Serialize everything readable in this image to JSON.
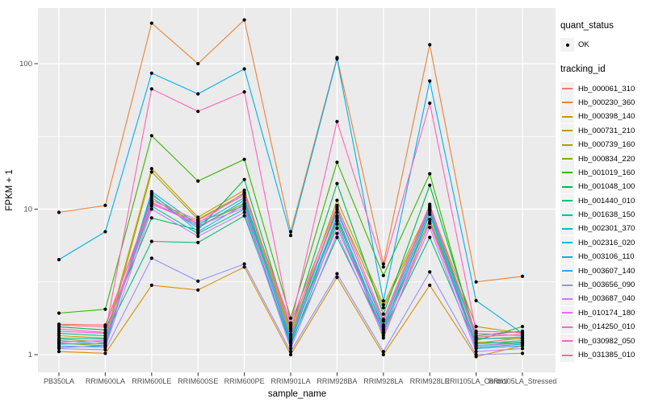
{
  "figure": {
    "background": "#FFFFFF",
    "panel_bg": "#EBEBEB",
    "grid_color": "#FFFFFF",
    "tick_color": "#333333",
    "tick_label_color": "#4D4D4D",
    "axis_title_color": "#000000",
    "point_color": "#000000",
    "legend_key_bg": "#F2F2F2"
  },
  "chart_data": {
    "type": "line",
    "title": "",
    "xlabel": "sample_name",
    "ylabel": "FPKM + 1",
    "y_scale": "log10",
    "y_ticks": [
      "1",
      "10",
      "100"
    ],
    "y_minor_values": [
      3.1623,
      31.623
    ],
    "ylim_approx": [
      0.78,
      230
    ],
    "grid": "on",
    "legend_position": "right",
    "categories": [
      "PB350LA",
      "RRIM600LA",
      "RRIM600LE",
      "RRIM600SE",
      "RRIM600PE",
      "RRIM901LA",
      "RRIM928BA",
      "RRIM928LA",
      "RRIM928LE",
      "RRII105LA_Control",
      "RRII105LA_Stressed"
    ],
    "legend": {
      "quant_title": "quant_status",
      "quant_items": [
        {
          "label": "OK",
          "shape": "point"
        }
      ],
      "series_title": "tracking_id"
    },
    "series": [
      {
        "name": "Hb_000061_310",
        "color": "#F8766D",
        "values": [
          1.62,
          1.6,
          11.0,
          8.2,
          10.5,
          1.25,
          8.8,
          1.3,
          8.2,
          1.2,
          1.3
        ]
      },
      {
        "name": "Hb_000230_360",
        "color": "#EB8335",
        "values": [
          9.5,
          10.6,
          190,
          100,
          200,
          7.0,
          110,
          4.2,
          135,
          3.16,
          3.45
        ]
      },
      {
        "name": "Hb_000398_140",
        "color": "#D89000",
        "values": [
          1.05,
          1.02,
          3.0,
          2.78,
          4.0,
          1.0,
          3.4,
          1.0,
          3.0,
          0.97,
          1.15
        ]
      },
      {
        "name": "Hb_000731_210",
        "color": "#C09B06",
        "values": [
          1.35,
          1.3,
          19.0,
          8.8,
          13.5,
          1.45,
          11.5,
          2.2,
          10.4,
          1.56,
          1.4
        ]
      },
      {
        "name": "Hb_000739_160",
        "color": "#A3A500",
        "values": [
          1.28,
          1.22,
          18.0,
          8.5,
          12.8,
          1.38,
          10.3,
          2.1,
          9.8,
          1.3,
          1.28
        ]
      },
      {
        "name": "Hb_000834_220",
        "color": "#7CAE00",
        "values": [
          1.2,
          1.15,
          12.5,
          7.6,
          11.0,
          1.3,
          8.3,
          1.55,
          8.5,
          1.22,
          1.2
        ]
      },
      {
        "name": "Hb_001019_160",
        "color": "#39B600",
        "values": [
          1.93,
          2.05,
          32,
          15.6,
          22,
          1.78,
          21,
          3.5,
          17.5,
          1.25,
          1.56
        ]
      },
      {
        "name": "Hb_001048_100",
        "color": "#00BB4E",
        "values": [
          1.55,
          1.48,
          8.7,
          7.2,
          16,
          1.5,
          15,
          1.9,
          14.6,
          1.35,
          1.45
        ]
      },
      {
        "name": "Hb_001440_010",
        "color": "#00BF7D",
        "values": [
          1.4,
          1.35,
          6.0,
          5.9,
          9.0,
          1.2,
          6.4,
          1.45,
          6.4,
          1.15,
          1.22
        ]
      },
      {
        "name": "Hb_001638_150",
        "color": "#00C1A7",
        "values": [
          1.3,
          1.28,
          10.5,
          6.8,
          10.0,
          1.15,
          7.9,
          1.4,
          9.5,
          1.12,
          1.18
        ]
      },
      {
        "name": "Hb_002301_370",
        "color": "#00BFC4",
        "values": [
          1.18,
          1.2,
          12.0,
          7.4,
          11.5,
          1.28,
          9.0,
          1.5,
          10.0,
          1.18,
          1.25
        ]
      },
      {
        "name": "Hb_002316_020",
        "color": "#00BADE",
        "values": [
          1.12,
          1.15,
          13.2,
          7.8,
          12.0,
          1.32,
          10.0,
          1.6,
          10.5,
          1.28,
          1.32
        ]
      },
      {
        "name": "Hb_003106_110",
        "color": "#00B0F6",
        "values": [
          4.5,
          7.0,
          86,
          62,
          92,
          6.6,
          108,
          2.34,
          76,
          2.35,
          1.4
        ]
      },
      {
        "name": "Hb_003607_140",
        "color": "#35A2FF",
        "values": [
          1.25,
          1.18,
          12.8,
          7.0,
          10.8,
          1.22,
          8.6,
          1.42,
          9.2,
          1.1,
          1.15
        ]
      },
      {
        "name": "Hb_003656_090",
        "color": "#9590FF",
        "values": [
          1.1,
          1.08,
          4.6,
          3.2,
          4.2,
          1.05,
          3.6,
          1.05,
          3.7,
          1.0,
          1.02
        ]
      },
      {
        "name": "Hb_003687_040",
        "color": "#C77CFF",
        "values": [
          1.15,
          1.12,
          10.0,
          6.5,
          9.5,
          1.1,
          6.8,
          1.35,
          7.5,
          1.05,
          1.1
        ]
      },
      {
        "name": "Hb_010174_180",
        "color": "#E76BF3",
        "values": [
          1.22,
          1.25,
          11.2,
          7.7,
          10.2,
          1.35,
          7.4,
          1.48,
          8.0,
          1.15,
          1.2
        ]
      },
      {
        "name": "Hb_014250_010",
        "color": "#FA62DB",
        "values": [
          1.45,
          1.4,
          10.8,
          8.0,
          13.0,
          1.55,
          9.5,
          1.7,
          10.2,
          1.4,
          1.35
        ]
      },
      {
        "name": "Hb_030982_050",
        "color": "#FF62BC",
        "values": [
          1.5,
          1.42,
          67,
          47,
          64,
          1.6,
          40,
          4.0,
          53.5,
          1.45,
          1.42
        ]
      },
      {
        "name": "Hb_031385_010",
        "color": "#FF6C91",
        "values": [
          1.6,
          1.55,
          11.5,
          8.4,
          12.5,
          1.65,
          10.6,
          1.75,
          10.8,
          1.32,
          1.38
        ]
      }
    ]
  }
}
